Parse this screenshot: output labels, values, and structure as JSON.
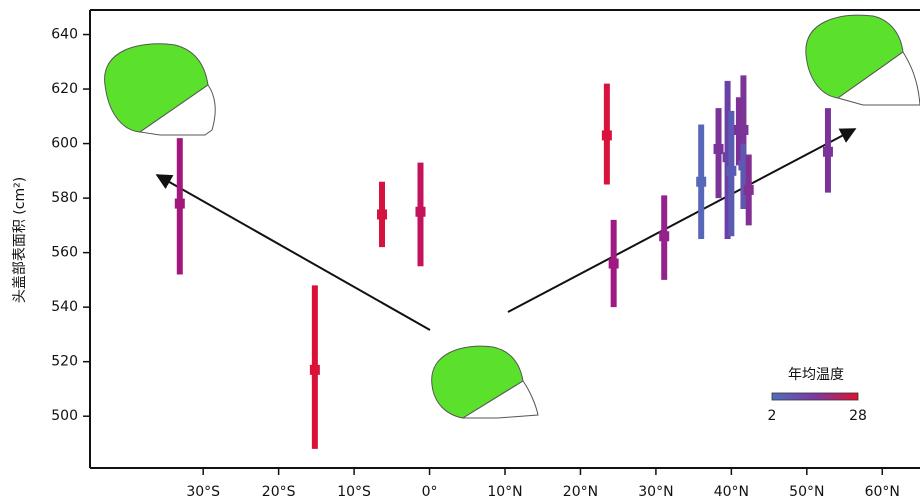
{
  "chart_data": {
    "type": "errorbar",
    "y_label": "头盖部表面积 (cm²)",
    "ylim": [
      481,
      649
    ],
    "yticks": [
      500,
      520,
      540,
      560,
      580,
      600,
      620,
      640
    ],
    "xlim": [
      -45,
      65
    ],
    "xticks": [
      {
        "value": -30,
        "label": "30°S"
      },
      {
        "value": -20,
        "label": "20°S"
      },
      {
        "value": -10,
        "label": "10°S"
      },
      {
        "value": 0,
        "label": "0°"
      },
      {
        "value": 10,
        "label": "10°N"
      },
      {
        "value": 20,
        "label": "20°N"
      },
      {
        "value": 30,
        "label": "30°N"
      },
      {
        "value": 40,
        "label": "40°N"
      },
      {
        "value": 50,
        "label": "50°N"
      },
      {
        "value": 60,
        "label": "60°N"
      }
    ],
    "x": [
      -33.1,
      -15.2,
      -6.3,
      -1.2,
      23.5,
      24.4,
      31.1,
      36.0,
      38.3,
      39.5,
      40.0,
      41.0,
      41.6,
      41.6,
      42.3,
      52.8
    ],
    "values": [
      578,
      517,
      574,
      575,
      603,
      556,
      566,
      586,
      598,
      595,
      590,
      605,
      605,
      592,
      583,
      597
    ],
    "lower": [
      552,
      488,
      562,
      555,
      585,
      540,
      550,
      565,
      580,
      565,
      566,
      592,
      590,
      576,
      570,
      582
    ],
    "upper": [
      602,
      548,
      586,
      593,
      622,
      572,
      581,
      607,
      613,
      623,
      612,
      617,
      625,
      600,
      596,
      613
    ],
    "colors": [
      "#a3177c",
      "#db1237",
      "#d4143e",
      "#c3135a",
      "#d8123c",
      "#a01882",
      "#94228a",
      "#5868b8",
      "#7c3398",
      "#6a40a6",
      "#5a5cb4",
      "#7d3096",
      "#7a3597",
      "#5f58b0",
      "#833094",
      "#7a3497"
    ],
    "colorbar": {
      "title": "年均温度",
      "min": 2,
      "max": 28,
      "colors": [
        "#4e6fbd",
        "#7b3aa0",
        "#e0102e"
      ]
    }
  }
}
